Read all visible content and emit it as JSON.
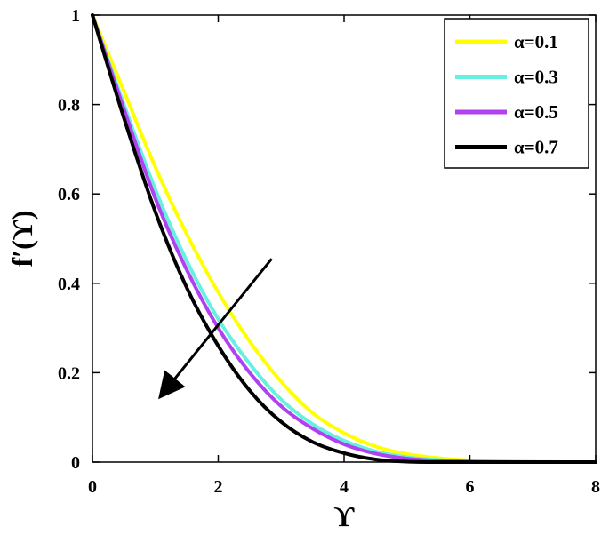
{
  "chart_data": {
    "type": "line",
    "xlabel": "ϒ",
    "ylabel": "f′(ϒ)",
    "xlim": [
      0,
      8
    ],
    "ylim": [
      0,
      1
    ],
    "x_ticks": [
      "0",
      "2",
      "4",
      "6",
      "8"
    ],
    "y_ticks": [
      "0",
      "0.2",
      "0.4",
      "0.6",
      "0.8",
      "1"
    ],
    "grid": false,
    "legend_position": "top-right",
    "series": [
      {
        "name": "α=0.1",
        "color": "#ffff00",
        "x": [
          0,
          0.5,
          1,
          1.5,
          2,
          2.5,
          3,
          3.5,
          4,
          4.5,
          5,
          5.5,
          6,
          6.5,
          7,
          7.5,
          8
        ],
        "y": [
          1.0,
          0.83,
          0.66,
          0.51,
          0.38,
          0.27,
          0.18,
          0.11,
          0.065,
          0.035,
          0.018,
          0.009,
          0.004,
          0.002,
          0.001,
          0.0,
          0.0
        ]
      },
      {
        "name": "α=0.3",
        "color": "#66f0e0",
        "x": [
          0,
          0.5,
          1,
          1.5,
          2,
          2.5,
          3,
          3.5,
          4,
          4.5,
          5,
          5.5,
          6,
          6.5,
          7,
          7.5,
          8
        ],
        "y": [
          1.0,
          0.8,
          0.61,
          0.45,
          0.32,
          0.22,
          0.14,
          0.085,
          0.048,
          0.024,
          0.011,
          0.005,
          0.002,
          0.001,
          0.0,
          0.0,
          0.0
        ]
      },
      {
        "name": "α=0.5",
        "color": "#b040f0",
        "x": [
          0,
          0.5,
          1,
          1.5,
          2,
          2.5,
          3,
          3.5,
          4,
          4.5,
          5,
          5.5,
          6,
          6.5,
          7,
          7.5,
          8
        ],
        "y": [
          1.0,
          0.79,
          0.59,
          0.43,
          0.3,
          0.2,
          0.125,
          0.075,
          0.04,
          0.019,
          0.008,
          0.003,
          0.001,
          0.0,
          0.0,
          0.0,
          0.0
        ]
      },
      {
        "name": "α=0.7",
        "color": "#000000",
        "x": [
          0,
          0.5,
          1,
          1.5,
          2,
          2.5,
          3,
          3.5,
          4,
          4.5,
          5,
          5.5,
          6,
          6.5,
          7,
          7.5,
          8
        ],
        "y": [
          1.0,
          0.77,
          0.56,
          0.39,
          0.26,
          0.16,
          0.09,
          0.045,
          0.02,
          0.006,
          0.001,
          0.0,
          0.0,
          0.0,
          0.0,
          0.0,
          0.0
        ]
      }
    ],
    "annotations": [
      {
        "type": "arrow",
        "from": [
          2.85,
          0.455
        ],
        "to": [
          1.1,
          0.15
        ],
        "color": "#000000"
      }
    ]
  }
}
